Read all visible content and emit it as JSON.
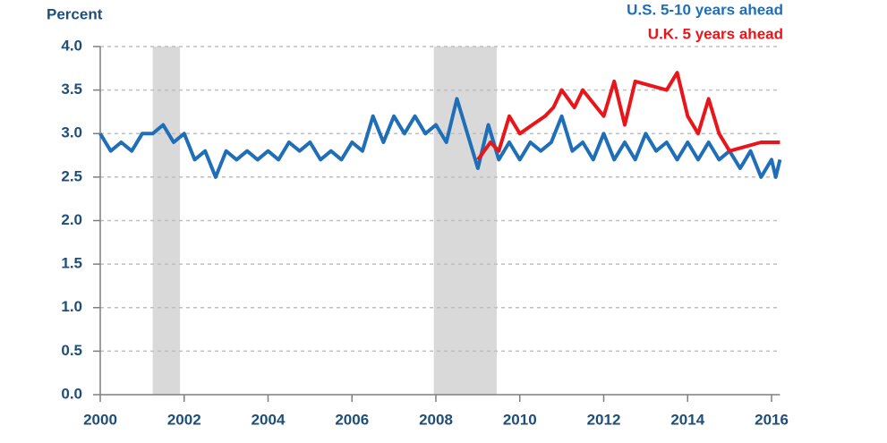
{
  "chart_data": {
    "type": "line",
    "y_axis_label": "Percent",
    "xlim": [
      2000,
      2016.2
    ],
    "xticks": [
      2000,
      2002,
      2004,
      2006,
      2008,
      2010,
      2012,
      2014,
      2016
    ],
    "ylim": [
      0,
      4
    ],
    "yticks": [
      {
        "value": 0,
        "label": "0.0"
      },
      {
        "value": 0.5,
        "label": "0.5"
      },
      {
        "value": 1,
        "label": "1.0"
      },
      {
        "value": 1.5,
        "label": "1.5"
      },
      {
        "value": 2,
        "label": "2.0"
      },
      {
        "value": 2.5,
        "label": "2.5"
      },
      {
        "value": 3,
        "label": "3.0"
      },
      {
        "value": 3.5,
        "label": "3.5"
      },
      {
        "value": 4,
        "label": "4.0"
      }
    ],
    "grid": true,
    "legend": "top-right",
    "shaded_x": [
      [
        2001.25,
        2001.9
      ],
      [
        2007.95,
        2009.45
      ]
    ],
    "shaded_color": "#d9d9d9",
    "series": [
      {
        "name": "U.S. 5-10 years ahead",
        "color": "#1f6fb8",
        "x": [
          2000,
          2000.25,
          2000.5,
          2000.75,
          2001,
          2001.25,
          2001.5,
          2001.75,
          2002,
          2002.25,
          2002.5,
          2002.75,
          2003,
          2003.25,
          2003.5,
          2003.75,
          2004,
          2004.25,
          2004.5,
          2004.75,
          2005,
          2005.25,
          2005.5,
          2005.75,
          2006,
          2006.25,
          2006.5,
          2006.75,
          2007,
          2007.25,
          2007.5,
          2007.75,
          2008,
          2008.25,
          2008.5,
          2008.75,
          2009,
          2009.25,
          2009.5,
          2009.75,
          2010,
          2010.25,
          2010.5,
          2010.75,
          2011,
          2011.25,
          2011.5,
          2011.75,
          2012,
          2012.25,
          2012.5,
          2012.75,
          2013,
          2013.25,
          2013.5,
          2013.75,
          2014,
          2014.25,
          2014.5,
          2014.75,
          2015,
          2015.25,
          2015.5,
          2015.75,
          2016,
          2016.1,
          2016.2
        ],
        "values": [
          3.0,
          2.8,
          2.9,
          2.8,
          3.0,
          3.0,
          3.1,
          2.9,
          3.0,
          2.7,
          2.8,
          2.5,
          2.8,
          2.7,
          2.8,
          2.7,
          2.8,
          2.7,
          2.9,
          2.8,
          2.9,
          2.7,
          2.8,
          2.7,
          2.9,
          2.8,
          3.2,
          2.9,
          3.2,
          3.0,
          3.2,
          3.0,
          3.1,
          2.9,
          3.4,
          3.0,
          2.6,
          3.1,
          2.7,
          2.9,
          2.7,
          2.9,
          2.8,
          2.9,
          3.2,
          2.8,
          2.9,
          2.7,
          3.0,
          2.7,
          2.9,
          2.7,
          3.0,
          2.8,
          2.9,
          2.7,
          2.9,
          2.7,
          2.9,
          2.7,
          2.8,
          2.6,
          2.8,
          2.5,
          2.7,
          2.5,
          2.7
        ]
      },
      {
        "name": "U.K. 5 years ahead",
        "color": "#e8161b",
        "x": [
          2009,
          2009.3,
          2009.5,
          2009.75,
          2010,
          2010.3,
          2010.6,
          2010.8,
          2011,
          2011.3,
          2011.5,
          2012,
          2012.25,
          2012.5,
          2012.75,
          2013.5,
          2013.75,
          2014,
          2014.25,
          2014.5,
          2014.75,
          2015,
          2015.75,
          2016.2
        ],
        "values": [
          2.7,
          2.9,
          2.8,
          3.2,
          3.0,
          3.1,
          3.2,
          3.3,
          3.5,
          3.3,
          3.5,
          3.2,
          3.6,
          3.1,
          3.6,
          3.5,
          3.7,
          3.2,
          3.0,
          3.4,
          3.0,
          2.8,
          2.9,
          2.9
        ]
      }
    ]
  }
}
